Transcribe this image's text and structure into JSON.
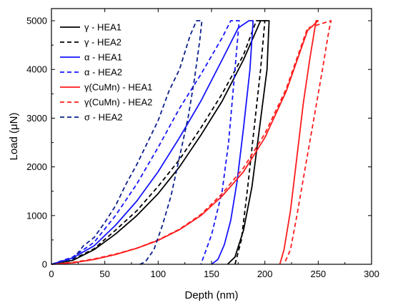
{
  "chart_data": {
    "type": "line",
    "xlabel": "Depth (nm)",
    "ylabel": "Load (μN)",
    "xlim": [
      0,
      300
    ],
    "ylim": [
      0,
      5250
    ],
    "xticks": [
      0,
      50,
      100,
      150,
      200,
      250,
      300
    ],
    "yticks": [
      0,
      1000,
      2000,
      3000,
      4000,
      5000
    ],
    "grid": false,
    "legend_position": "top-left",
    "series": [
      {
        "name": "γ - HEA1",
        "color": "#000000",
        "dash": "solid",
        "x": [
          0,
          20,
          40,
          60,
          80,
          100,
          120,
          140,
          160,
          180,
          196,
          204,
          202,
          195,
          188,
          180,
          172,
          165
        ],
        "y": [
          0,
          80,
          300,
          620,
          1000,
          1450,
          2000,
          2650,
          3350,
          4200,
          5000,
          5000,
          4000,
          2800,
          1600,
          700,
          150,
          0
        ]
      },
      {
        "name": "γ - HEA2",
        "color": "#000000",
        "dash": "dashed",
        "x": [
          0,
          20,
          40,
          60,
          80,
          100,
          120,
          140,
          160,
          180,
          192,
          200,
          196,
          190,
          184,
          178,
          172
        ],
        "y": [
          0,
          100,
          320,
          700,
          1100,
          1600,
          2150,
          2800,
          3500,
          4300,
          5000,
          5000,
          4000,
          2800,
          1600,
          500,
          0
        ]
      },
      {
        "name": "α - HEA1",
        "color": "#1515ff",
        "dash": "solid",
        "x": [
          0,
          20,
          40,
          60,
          80,
          100,
          120,
          140,
          160,
          175,
          185,
          189,
          186,
          180,
          174,
          168,
          162,
          156,
          150
        ],
        "y": [
          0,
          130,
          380,
          800,
          1300,
          1900,
          2600,
          3350,
          4200,
          4850,
          5000,
          5000,
          4000,
          2800,
          1700,
          900,
          400,
          100,
          0
        ]
      },
      {
        "name": "α - HEA2",
        "color": "#1515ff",
        "dash": "dashed",
        "x": [
          0,
          20,
          40,
          60,
          80,
          100,
          120,
          140,
          160,
          168,
          176,
          174,
          170,
          166,
          160,
          150,
          140
        ],
        "y": [
          0,
          150,
          450,
          1000,
          1650,
          2400,
          3200,
          3900,
          4650,
          5000,
          5000,
          4500,
          3500,
          2500,
          1500,
          600,
          0
        ]
      },
      {
        "name": "γ(CuMn) - HEA1",
        "color": "#ff1a1a",
        "dash": "solid",
        "x": [
          0,
          20,
          40,
          60,
          80,
          100,
          120,
          140,
          160,
          180,
          200,
          220,
          240,
          250,
          248,
          242,
          236,
          230,
          224,
          218,
          214
        ],
        "y": [
          0,
          30,
          100,
          200,
          330,
          490,
          710,
          1000,
          1400,
          1900,
          2600,
          3550,
          4800,
          5000,
          5000,
          4200,
          3300,
          2200,
          1100,
          300,
          0
        ]
      },
      {
        "name": "γ(CuMn) - HEA2",
        "color": "#ff1a1a",
        "dash": "dashed",
        "x": [
          0,
          20,
          40,
          60,
          80,
          100,
          120,
          140,
          160,
          180,
          200,
          220,
          240,
          262,
          260,
          254,
          246,
          238,
          230,
          224,
          218
        ],
        "y": [
          0,
          40,
          110,
          210,
          330,
          500,
          720,
          1020,
          1450,
          1980,
          2680,
          3600,
          4850,
          5000,
          4800,
          4000,
          3000,
          2000,
          1000,
          300,
          0
        ]
      },
      {
        "name": "σ - HEA2",
        "color": "#0a1f8a",
        "dash": "dashed",
        "x": [
          0,
          20,
          30,
          40,
          50,
          60,
          70,
          80,
          90,
          100,
          110,
          120,
          130,
          136,
          141,
          139,
          134,
          128,
          120,
          112,
          104,
          96,
          88,
          83
        ],
        "y": [
          0,
          100,
          380,
          550,
          860,
          1200,
          1650,
          2050,
          2500,
          2950,
          3550,
          4000,
          4700,
          5000,
          5000,
          4600,
          3800,
          3000,
          2200,
          1400,
          800,
          300,
          50,
          0
        ]
      }
    ]
  }
}
